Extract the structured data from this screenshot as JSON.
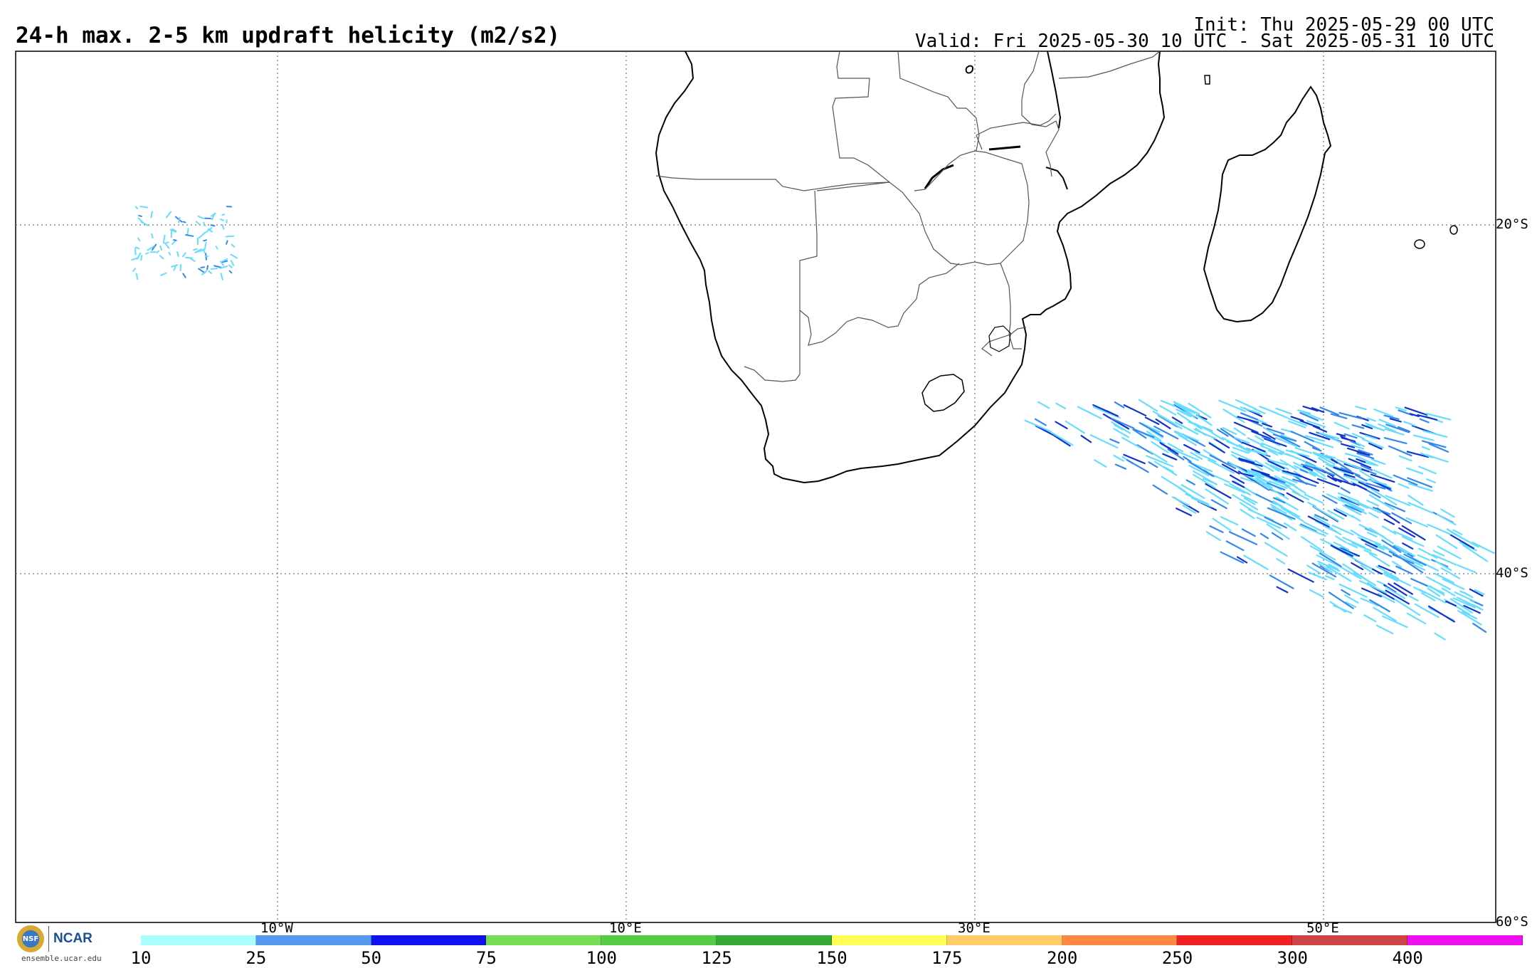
{
  "header": {
    "title": "24-h max. 2-5 km updraft helicity (m2/s2)",
    "init": "Init: Thu 2025-05-29 00 UTC",
    "valid": "Valid: Fri 2025-05-30 10 UTC - Sat 2025-05-31 10 UTC"
  },
  "axes": {
    "lat_labels": [
      "20°S",
      "40°S",
      "60°S"
    ],
    "lon_labels": [
      "10°W",
      "10°E",
      "30°E",
      "50°E"
    ]
  },
  "colorbar": {
    "ticks": [
      "10",
      "25",
      "50",
      "75",
      "100",
      "125",
      "150",
      "175",
      "200",
      "250",
      "300",
      "400"
    ],
    "colors": [
      "#aaffff",
      "#5599ee",
      "#1111ee",
      "#77dd55",
      "#55cc44",
      "#33aa33",
      "#ffff55",
      "#ffcc66",
      "#ff8844",
      "#ee2222",
      "#cc4444",
      "#ee11ee"
    ]
  },
  "logo": {
    "nsf_text": "NSF",
    "ncar_text": "NCAR",
    "url": "ensemble.ucar.edu"
  },
  "styles": {
    "coast_color": "#000000",
    "border_color": "#555555",
    "grid_color": "#777777",
    "uh_light": "#66ddff",
    "uh_mid": "#3388ee",
    "uh_dark": "#1133cc"
  }
}
